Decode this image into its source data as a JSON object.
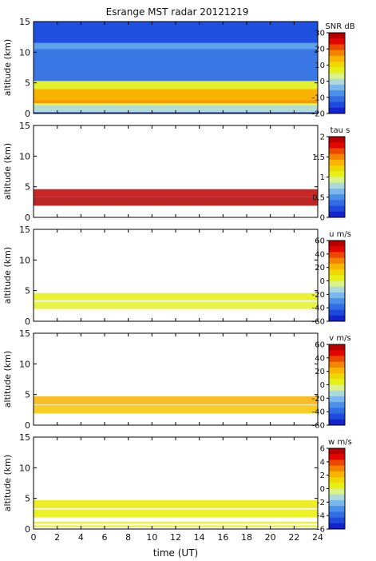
{
  "chart_data": {
    "type": "heatmap",
    "title": "Esrange MST radar 20121219",
    "xlabel": "time (UT)",
    "xlim": [
      0,
      24
    ],
    "xticks": [
      "0",
      "2",
      "4",
      "6",
      "8",
      "10",
      "12",
      "14",
      "16",
      "18",
      "20",
      "22",
      "24"
    ],
    "ylabel": "altitude (km)",
    "ylim": [
      0,
      15
    ],
    "yticks": [
      "0",
      "5",
      "10",
      "15"
    ],
    "panels": [
      {
        "id": "snr",
        "colorbar_label": "SNR dB",
        "clim": [
          -20,
          30
        ],
        "cticks": [
          "30",
          "20",
          "10",
          "0",
          "-10",
          "-20"
        ],
        "cticks_values": [
          30,
          20,
          10,
          0,
          -10,
          -20
        ],
        "layers": [
          {
            "from": 0.0,
            "to": 0.2,
            "value": -16
          },
          {
            "from": 0.2,
            "to": 1.3,
            "value": 0
          },
          {
            "from": 1.3,
            "to": 1.7,
            "value": 5
          },
          {
            "from": 1.7,
            "to": 2.2,
            "value": 16
          },
          {
            "from": 2.2,
            "to": 4.0,
            "value": 14
          },
          {
            "from": 4.0,
            "to": 5.3,
            "value": 6
          },
          {
            "from": 5.3,
            "to": 10.5,
            "value": -10
          },
          {
            "from": 10.5,
            "to": 11.5,
            "value": -6
          },
          {
            "from": 11.5,
            "to": 15.0,
            "value": -14
          }
        ]
      },
      {
        "id": "tau",
        "colorbar_label": "tau s",
        "clim": [
          0,
          2
        ],
        "cticks": [
          "2",
          "1.5",
          "1",
          "0.5",
          "0"
        ],
        "cticks_values": [
          2,
          1.5,
          1,
          0.5,
          0
        ],
        "layers": [
          {
            "from": 1.9,
            "to": 3.3,
            "value": 1.95
          },
          {
            "from": 3.3,
            "to": 4.6,
            "value": 1.9
          }
        ]
      },
      {
        "id": "u",
        "colorbar_label": "u m/s",
        "clim": [
          -60,
          60
        ],
        "cticks": [
          "60",
          "40",
          "20",
          "0",
          "-20",
          "-40",
          "-60"
        ],
        "cticks_values": [
          60,
          40,
          20,
          0,
          -20,
          -40,
          -60
        ],
        "layers": [
          {
            "from": 2.0,
            "to": 3.2,
            "value": 3
          },
          {
            "from": 3.4,
            "to": 4.6,
            "value": 5
          }
        ]
      },
      {
        "id": "v",
        "colorbar_label": "v m/s",
        "clim": [
          -60,
          60
        ],
        "cticks": [
          "60",
          "40",
          "20",
          "0",
          "-20",
          "-40",
          "-60"
        ],
        "cticks_values": [
          60,
          40,
          20,
          0,
          -20,
          -40,
          -60
        ],
        "layers": [
          {
            "from": 1.9,
            "to": 3.3,
            "value": 18
          },
          {
            "from": 3.4,
            "to": 4.7,
            "value": 22
          }
        ]
      },
      {
        "id": "w",
        "colorbar_label": "w m/s",
        "clim": [
          -6,
          6
        ],
        "cticks": [
          "6",
          "4",
          "2",
          "0",
          "-2",
          "-4",
          "-6"
        ],
        "cticks_values": [
          6,
          4,
          2,
          0,
          -2,
          -4,
          -6
        ],
        "layers": [
          {
            "from": 0.3,
            "to": 0.6,
            "value": 0.5
          },
          {
            "from": 0.9,
            "to": 1.2,
            "value": 0.5
          },
          {
            "from": 1.9,
            "to": 3.2,
            "value": 0.6
          },
          {
            "from": 3.4,
            "to": 4.7,
            "value": 0.8
          }
        ]
      }
    ]
  }
}
